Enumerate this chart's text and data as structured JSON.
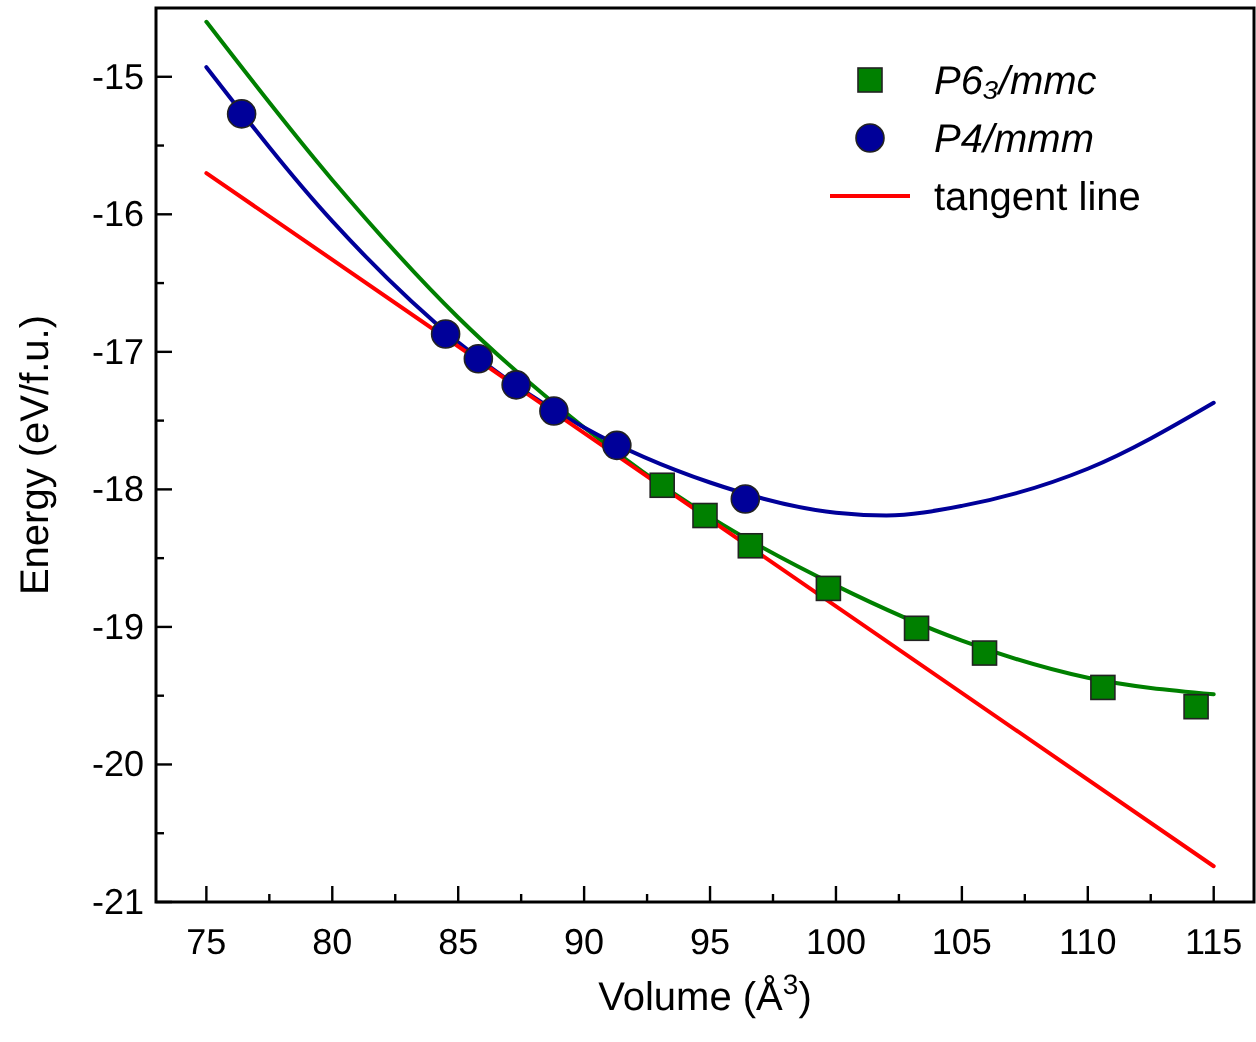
{
  "chart_data": {
    "type": "scatter",
    "xlabel": "Volume (Å$^{3}$)",
    "ylabel": "Energy (eV/f.u.)",
    "xlim": [
      73,
      116.6
    ],
    "ylim": [
      -21,
      -14.5
    ],
    "xticks": [
      75,
      {
        "value": 77.5,
        "label": null
      },
      80,
      {
        "value": 82.5,
        "label": null
      },
      85,
      {
        "value": 87.5,
        "label": null
      },
      90,
      {
        "value": 92.5,
        "label": null
      },
      95,
      {
        "value": 97.5,
        "label": null
      },
      100,
      {
        "value": 102.5,
        "label": null
      },
      105,
      {
        "value": 107.5,
        "label": null
      },
      110,
      {
        "value": 112.5,
        "label": null
      },
      115
    ],
    "yticks": [
      -21,
      {
        "value": -20.5,
        "label": null
      },
      -20,
      {
        "value": -19.5,
        "label": null
      },
      -19,
      {
        "value": -18.5,
        "label": null
      },
      -18,
      {
        "value": -17.5,
        "label": null
      },
      -17,
      {
        "value": -16.5,
        "label": null
      },
      -16,
      {
        "value": -15.5,
        "label": null
      },
      -15
    ],
    "grid": false,
    "legend": "top right",
    "series": [
      {
        "name": "P6₃/mmc",
        "color": "#008000",
        "marker": "square",
        "x": [
          93.1,
          94.8,
          96.6,
          99.7,
          103.2,
          105.9,
          110.6,
          114.3
        ],
        "values": [
          -17.97,
          -18.19,
          -18.41,
          -18.72,
          -19.01,
          -19.19,
          -19.44,
          -19.58
        ]
      },
      {
        "name": "P4/mmm",
        "color": "#000099",
        "marker": "circle",
        "x": [
          76.4,
          84.5,
          85.8,
          87.3,
          88.8,
          91.3,
          96.4
        ],
        "values": [
          -15.27,
          -16.87,
          -17.05,
          -17.24,
          -17.43,
          -17.68,
          -18.07
        ]
      },
      {
        "type": "line",
        "color": "#008000",
        "marker": "none",
        "x": [
          75,
          80,
          85,
          90,
          95,
          100,
          105,
          110,
          115
        ],
        "values": [
          -14.6,
          -15.75,
          -16.75,
          -17.55,
          -18.2,
          -18.7,
          -19.1,
          -19.37,
          -19.49
        ]
      },
      {
        "type": "line",
        "color": "#000099",
        "marker": "none",
        "x": [
          75,
          80,
          85,
          90,
          95,
          100,
          102,
          105,
          110,
          115
        ],
        "values": [
          -14.93,
          -16.05,
          -16.93,
          -17.55,
          -17.95,
          -18.17,
          -18.19,
          -18.12,
          -17.85,
          -17.37
        ]
      },
      {
        "type": "line",
        "name": "tangent line",
        "color": "#ff0000",
        "marker": "none",
        "x": [
          75,
          115
        ],
        "values": [
          -15.7,
          -20.74
        ]
      }
    ]
  }
}
